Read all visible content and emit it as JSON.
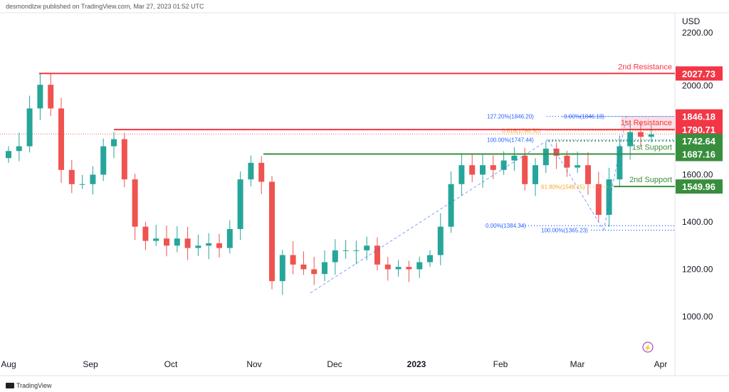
{
  "header": {
    "byline": "desmondlzw published on TradingView.com, Mar 27, 2023 01:52 UTC"
  },
  "footer": {
    "logo": "TradingView"
  },
  "chart_data": {
    "type": "candlestick",
    "currency": "USD",
    "y_ticks": [
      1000,
      1200,
      1400,
      1600,
      2000,
      2200
    ],
    "ylim": [
      880,
      2250
    ],
    "x_ticks": [
      "Aug",
      "Sep",
      "Oct",
      "Nov",
      "Dec",
      "2023",
      "Feb",
      "Mar",
      "Apr"
    ],
    "start_date": "2022-08-01",
    "interval_days": 4,
    "closes": [
      1700,
      1720,
      1880,
      1980,
      1880,
      1620,
      1560,
      1560,
      1600,
      1720,
      1750,
      1580,
      1380,
      1320,
      1330,
      1300,
      1330,
      1290,
      1300,
      1310,
      1290,
      1370,
      1580,
      1650,
      1570,
      1150,
      1260,
      1220,
      1200,
      1180,
      1230,
      1280,
      1280,
      1280,
      1300,
      1220,
      1200,
      1210,
      1200,
      1230,
      1260,
      1380,
      1560,
      1640,
      1600,
      1640,
      1620,
      1660,
      1680,
      1560,
      1640,
      1710,
      1680,
      1630,
      1640,
      1560,
      1430,
      1580,
      1720,
      1780,
      1760,
      1770
    ],
    "levels": [
      {
        "label": "2nd Resistance",
        "price": 2027.73,
        "tag": "2027.73",
        "color": "#f23645"
      },
      {
        "label": "1st Resistance",
        "price": 1790.71,
        "tag": "1790.71",
        "color": "#f23645"
      },
      {
        "label": "1st Support",
        "price": 1687.16,
        "tag": "1687.16",
        "color": "#388e3c"
      },
      {
        "label": "2nd Support",
        "price": 1549.96,
        "tag": "1549.96",
        "color": "#388e3c"
      }
    ],
    "price_tags": [
      {
        "tag": "1846.18",
        "price": 1846.18,
        "color": "#f23645"
      },
      {
        "tag": "1742.64",
        "price": 1742.64,
        "color": "#388e3c"
      }
    ],
    "fib_labels": [
      {
        "text": "127.20%(1846.20)",
        "price": 1846.2,
        "color": "#2962ff"
      },
      {
        "text": "0.00%(1846.18)",
        "price": 1846.18,
        "color": "#2962ff"
      },
      {
        "text": "0.618(1786.50)",
        "price": 1786.5,
        "color": "#f5a623"
      },
      {
        "text": "100.00%(1747.44)",
        "price": 1747.44,
        "color": "#2962ff"
      },
      {
        "text": "61.80%(1548.15)",
        "price": 1548.15,
        "color": "#f5a623"
      },
      {
        "text": "0.00%(1384.34)",
        "price": 1384.34,
        "color": "#2962ff"
      },
      {
        "text": "100.00%(1365.23)",
        "price": 1365.23,
        "color": "#2962ff"
      }
    ],
    "colors": {
      "up": "#26a69a",
      "down": "#ef5350"
    }
  }
}
